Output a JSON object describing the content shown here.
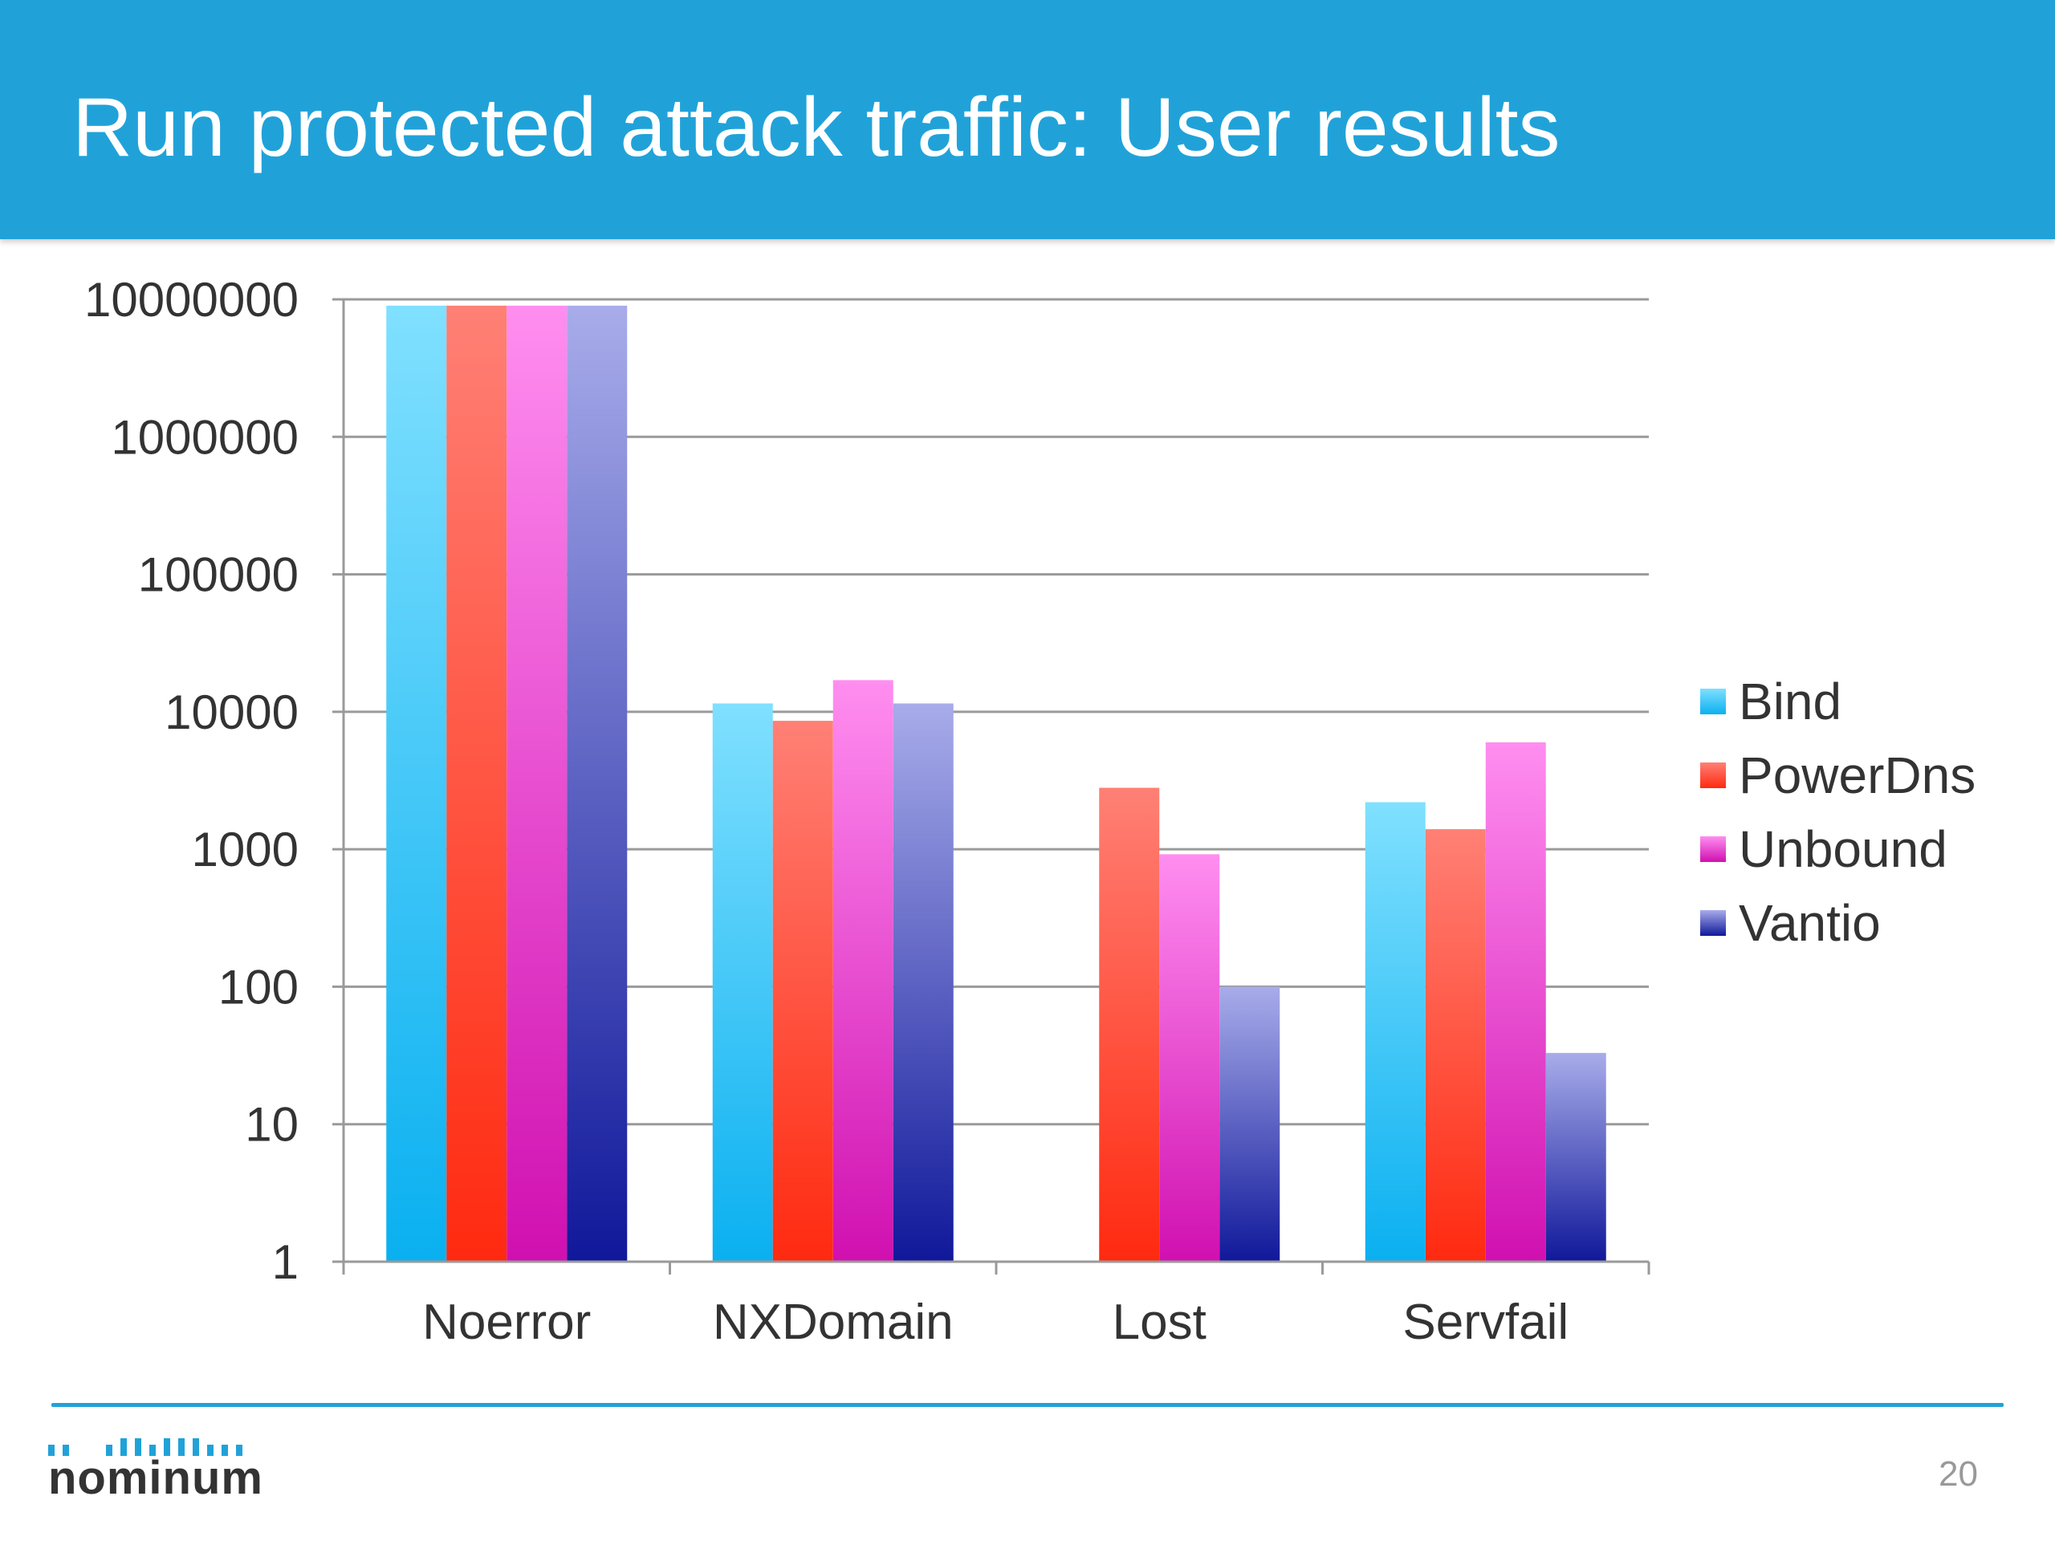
{
  "slide": {
    "title": "Run protected attack traffic: User results",
    "page_number": "20",
    "logo_text": "nominum"
  },
  "colors": {
    "header": "#20a2d9",
    "footer_line": "#20a2d9",
    "logo_dots": "#20a2d9"
  },
  "chart_data": {
    "type": "bar",
    "title": "",
    "xlabel": "",
    "ylabel": "",
    "y_scale": "log",
    "ylim": [
      1,
      10000000
    ],
    "y_ticks": [
      "1",
      "10",
      "100",
      "1000",
      "10000",
      "100000",
      "1000000",
      "10000000"
    ],
    "grid": true,
    "legend_position": "right",
    "categories": [
      "Noerror",
      "NXDomain",
      "Lost",
      "Servfail"
    ],
    "series": [
      {
        "name": "Bind",
        "values": [
          9000000,
          11500,
          0,
          2200
        ],
        "color_top": "#80e0ff",
        "color_bottom": "#0ab0f0"
      },
      {
        "name": "PowerDns",
        "values": [
          9000000,
          8600,
          2800,
          1400
        ],
        "color_top": "#ff8075",
        "color_bottom": "#ff2a10"
      },
      {
        "name": "Unbound",
        "values": [
          9000000,
          17000,
          920,
          6000
        ],
        "color_top": "#ff8ef0",
        "color_bottom": "#d010b0"
      },
      {
        "name": "Vantio",
        "values": [
          9000000,
          11500,
          100,
          33
        ],
        "color_top": "#a8acea",
        "color_bottom": "#10189a"
      }
    ]
  }
}
